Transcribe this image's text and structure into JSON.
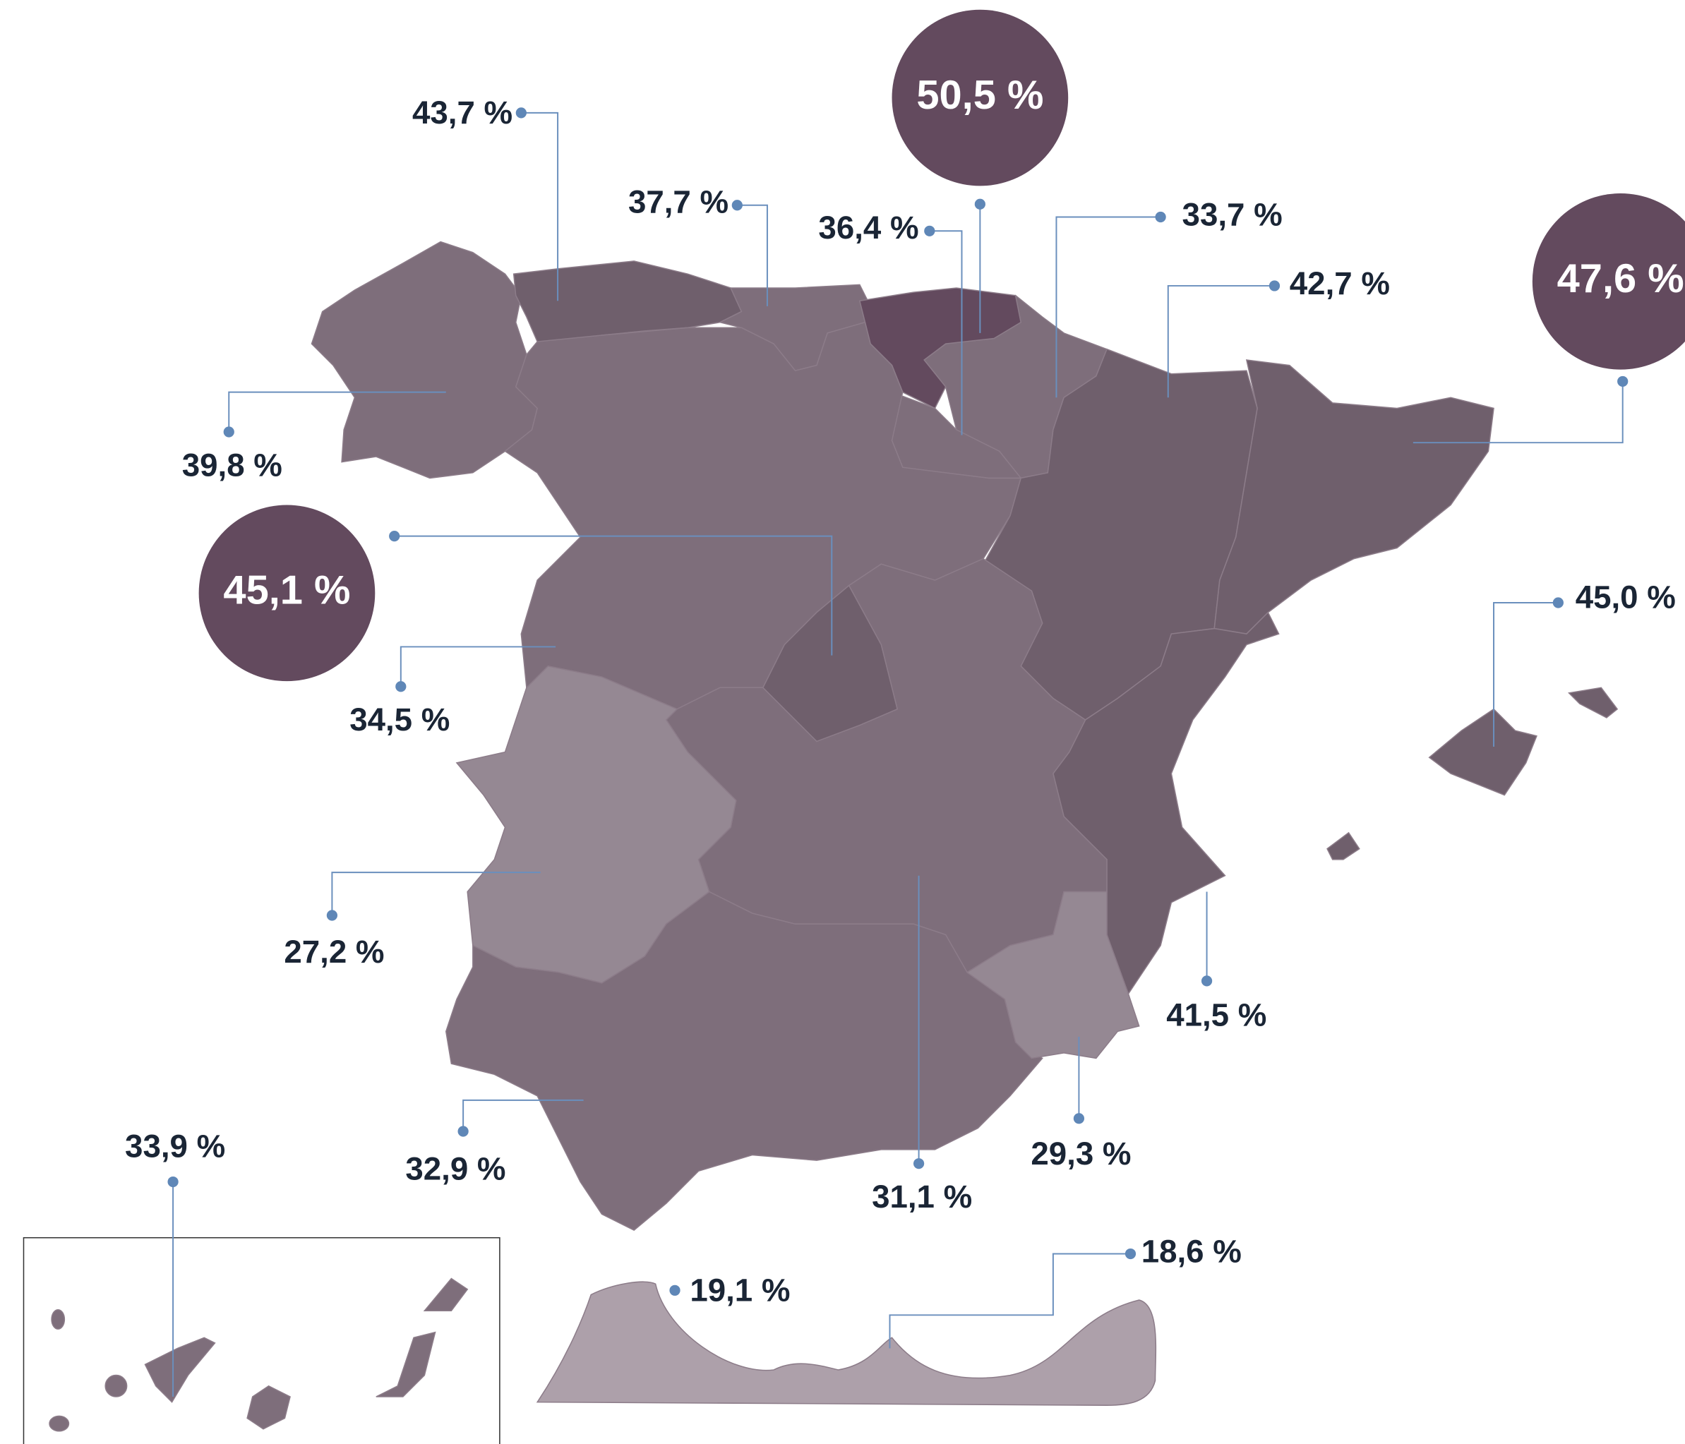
{
  "regions": [
    {
      "label": "43,7 %",
      "color": "#6f5f6c"
    },
    {
      "label": "37,7 %",
      "color": "#7e6e7b"
    },
    {
      "label": "50,5 %",
      "color": "#634a5e",
      "highlight": true
    },
    {
      "label": "36,4 %",
      "color": "#7e6e7b"
    },
    {
      "label": "33,7 %",
      "color": "#7e6e7b"
    },
    {
      "label": "42,7 %",
      "color": "#6f5f6c"
    },
    {
      "label": "47,6 %",
      "color": "#6f5f6c",
      "highlight": true
    },
    {
      "label": "39,8 %",
      "color": "#7e6e7b"
    },
    {
      "label": "45,1 %",
      "color": "#6f5f6c",
      "highlight": true
    },
    {
      "label": "34,5 %",
      "color": "#7e6e7b"
    },
    {
      "label": "27,2 %",
      "color": "#958893"
    },
    {
      "label": "32,9 %",
      "color": "#7e6e7b"
    },
    {
      "label": "31,1 %",
      "color": "#7e6e7b"
    },
    {
      "label": "29,3 %",
      "color": "#958893"
    },
    {
      "label": "41,5 %",
      "color": "#6f5f6c"
    },
    {
      "label": "45,0 %",
      "color": "#6f5f6c"
    },
    {
      "label": "33,9 %",
      "color": "#7e6e7b"
    },
    {
      "label": "19,1 %",
      "color": "#ada0aa"
    },
    {
      "label": "18,6 %",
      "color": "#ada0aa"
    }
  ]
}
